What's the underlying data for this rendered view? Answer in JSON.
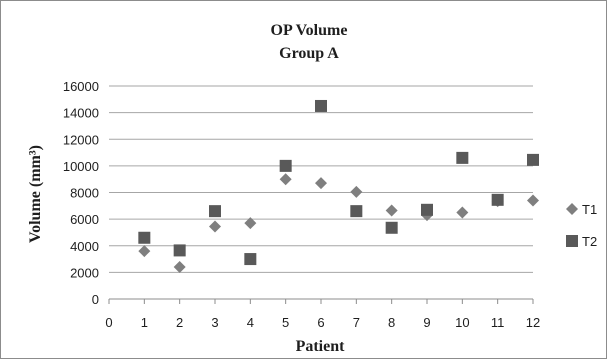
{
  "chart_data": {
    "type": "scatter",
    "title": "OP Volume",
    "subtitle": "Group A",
    "xlabel": "Patient",
    "ylabel": "Volume (mm³)",
    "xlim": [
      0,
      12
    ],
    "ylim": [
      0,
      16000
    ],
    "x_ticks": [
      0,
      1,
      2,
      3,
      4,
      5,
      6,
      7,
      8,
      9,
      10,
      11,
      12
    ],
    "y_ticks": [
      0,
      2000,
      4000,
      6000,
      8000,
      10000,
      12000,
      14000,
      16000
    ],
    "grid": "horizontal",
    "legend_position": "right",
    "series": [
      {
        "name": "T1",
        "marker": "diamond",
        "color": "#7f7f7f",
        "points": [
          {
            "x": 1,
            "y": 3600
          },
          {
            "x": 2,
            "y": 2400
          },
          {
            "x": 3,
            "y": 5450
          },
          {
            "x": 4,
            "y": 5700
          },
          {
            "x": 5,
            "y": 9000
          },
          {
            "x": 6,
            "y": 8700
          },
          {
            "x": 7,
            "y": 8050
          },
          {
            "x": 8,
            "y": 6650
          },
          {
            "x": 9,
            "y": 6300
          },
          {
            "x": 10,
            "y": 6500
          },
          {
            "x": 11,
            "y": 7350
          },
          {
            "x": 12,
            "y": 7400
          }
        ]
      },
      {
        "name": "T2",
        "marker": "square",
        "color": "#595959",
        "points": [
          {
            "x": 1,
            "y": 4600
          },
          {
            "x": 2,
            "y": 3650
          },
          {
            "x": 3,
            "y": 6600
          },
          {
            "x": 4,
            "y": 3000
          },
          {
            "x": 5,
            "y": 10000
          },
          {
            "x": 6,
            "y": 14500
          },
          {
            "x": 7,
            "y": 6600
          },
          {
            "x": 8,
            "y": 5350
          },
          {
            "x": 9,
            "y": 6700
          },
          {
            "x": 10,
            "y": 10600
          },
          {
            "x": 11,
            "y": 7450
          },
          {
            "x": 12,
            "y": 10450
          }
        ]
      }
    ]
  }
}
